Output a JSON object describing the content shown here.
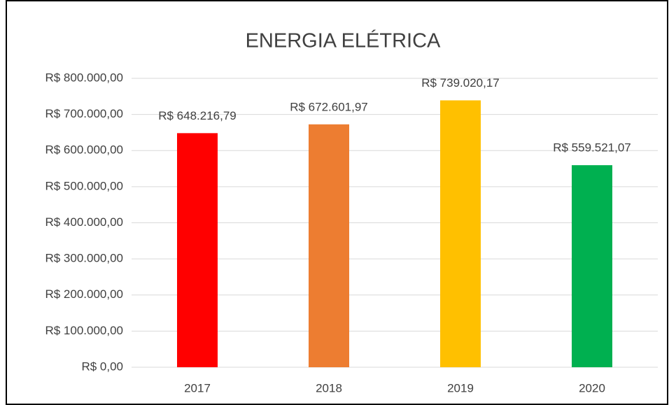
{
  "chart_data": {
    "type": "bar",
    "title": "ENERGIA ELÉTRICA",
    "categories": [
      "2017",
      "2018",
      "2019",
      "2020"
    ],
    "values": [
      648216.79,
      672601.97,
      739020.17,
      559521.07
    ],
    "value_labels": [
      "R$ 648.216,79",
      "R$ 672.601,97",
      "R$ 739.020,17",
      "R$ 559.521,07"
    ],
    "colors": [
      "#ff0000",
      "#ed7d31",
      "#ffc000",
      "#00b050"
    ],
    "ylim": [
      0,
      800000
    ],
    "yticks": [
      {
        "value": 0,
        "label": "R$ 0,00"
      },
      {
        "value": 100000,
        "label": "R$ 100.000,00"
      },
      {
        "value": 200000,
        "label": "R$ 200.000,00"
      },
      {
        "value": 300000,
        "label": "R$ 300.000,00"
      },
      {
        "value": 400000,
        "label": "R$ 400.000,00"
      },
      {
        "value": 500000,
        "label": "R$ 500.000,00"
      },
      {
        "value": 600000,
        "label": "R$ 600.000,00"
      },
      {
        "value": 700000,
        "label": "R$ 700.000,00"
      },
      {
        "value": 800000,
        "label": "R$ 800.000,00"
      }
    ],
    "grid": true
  }
}
